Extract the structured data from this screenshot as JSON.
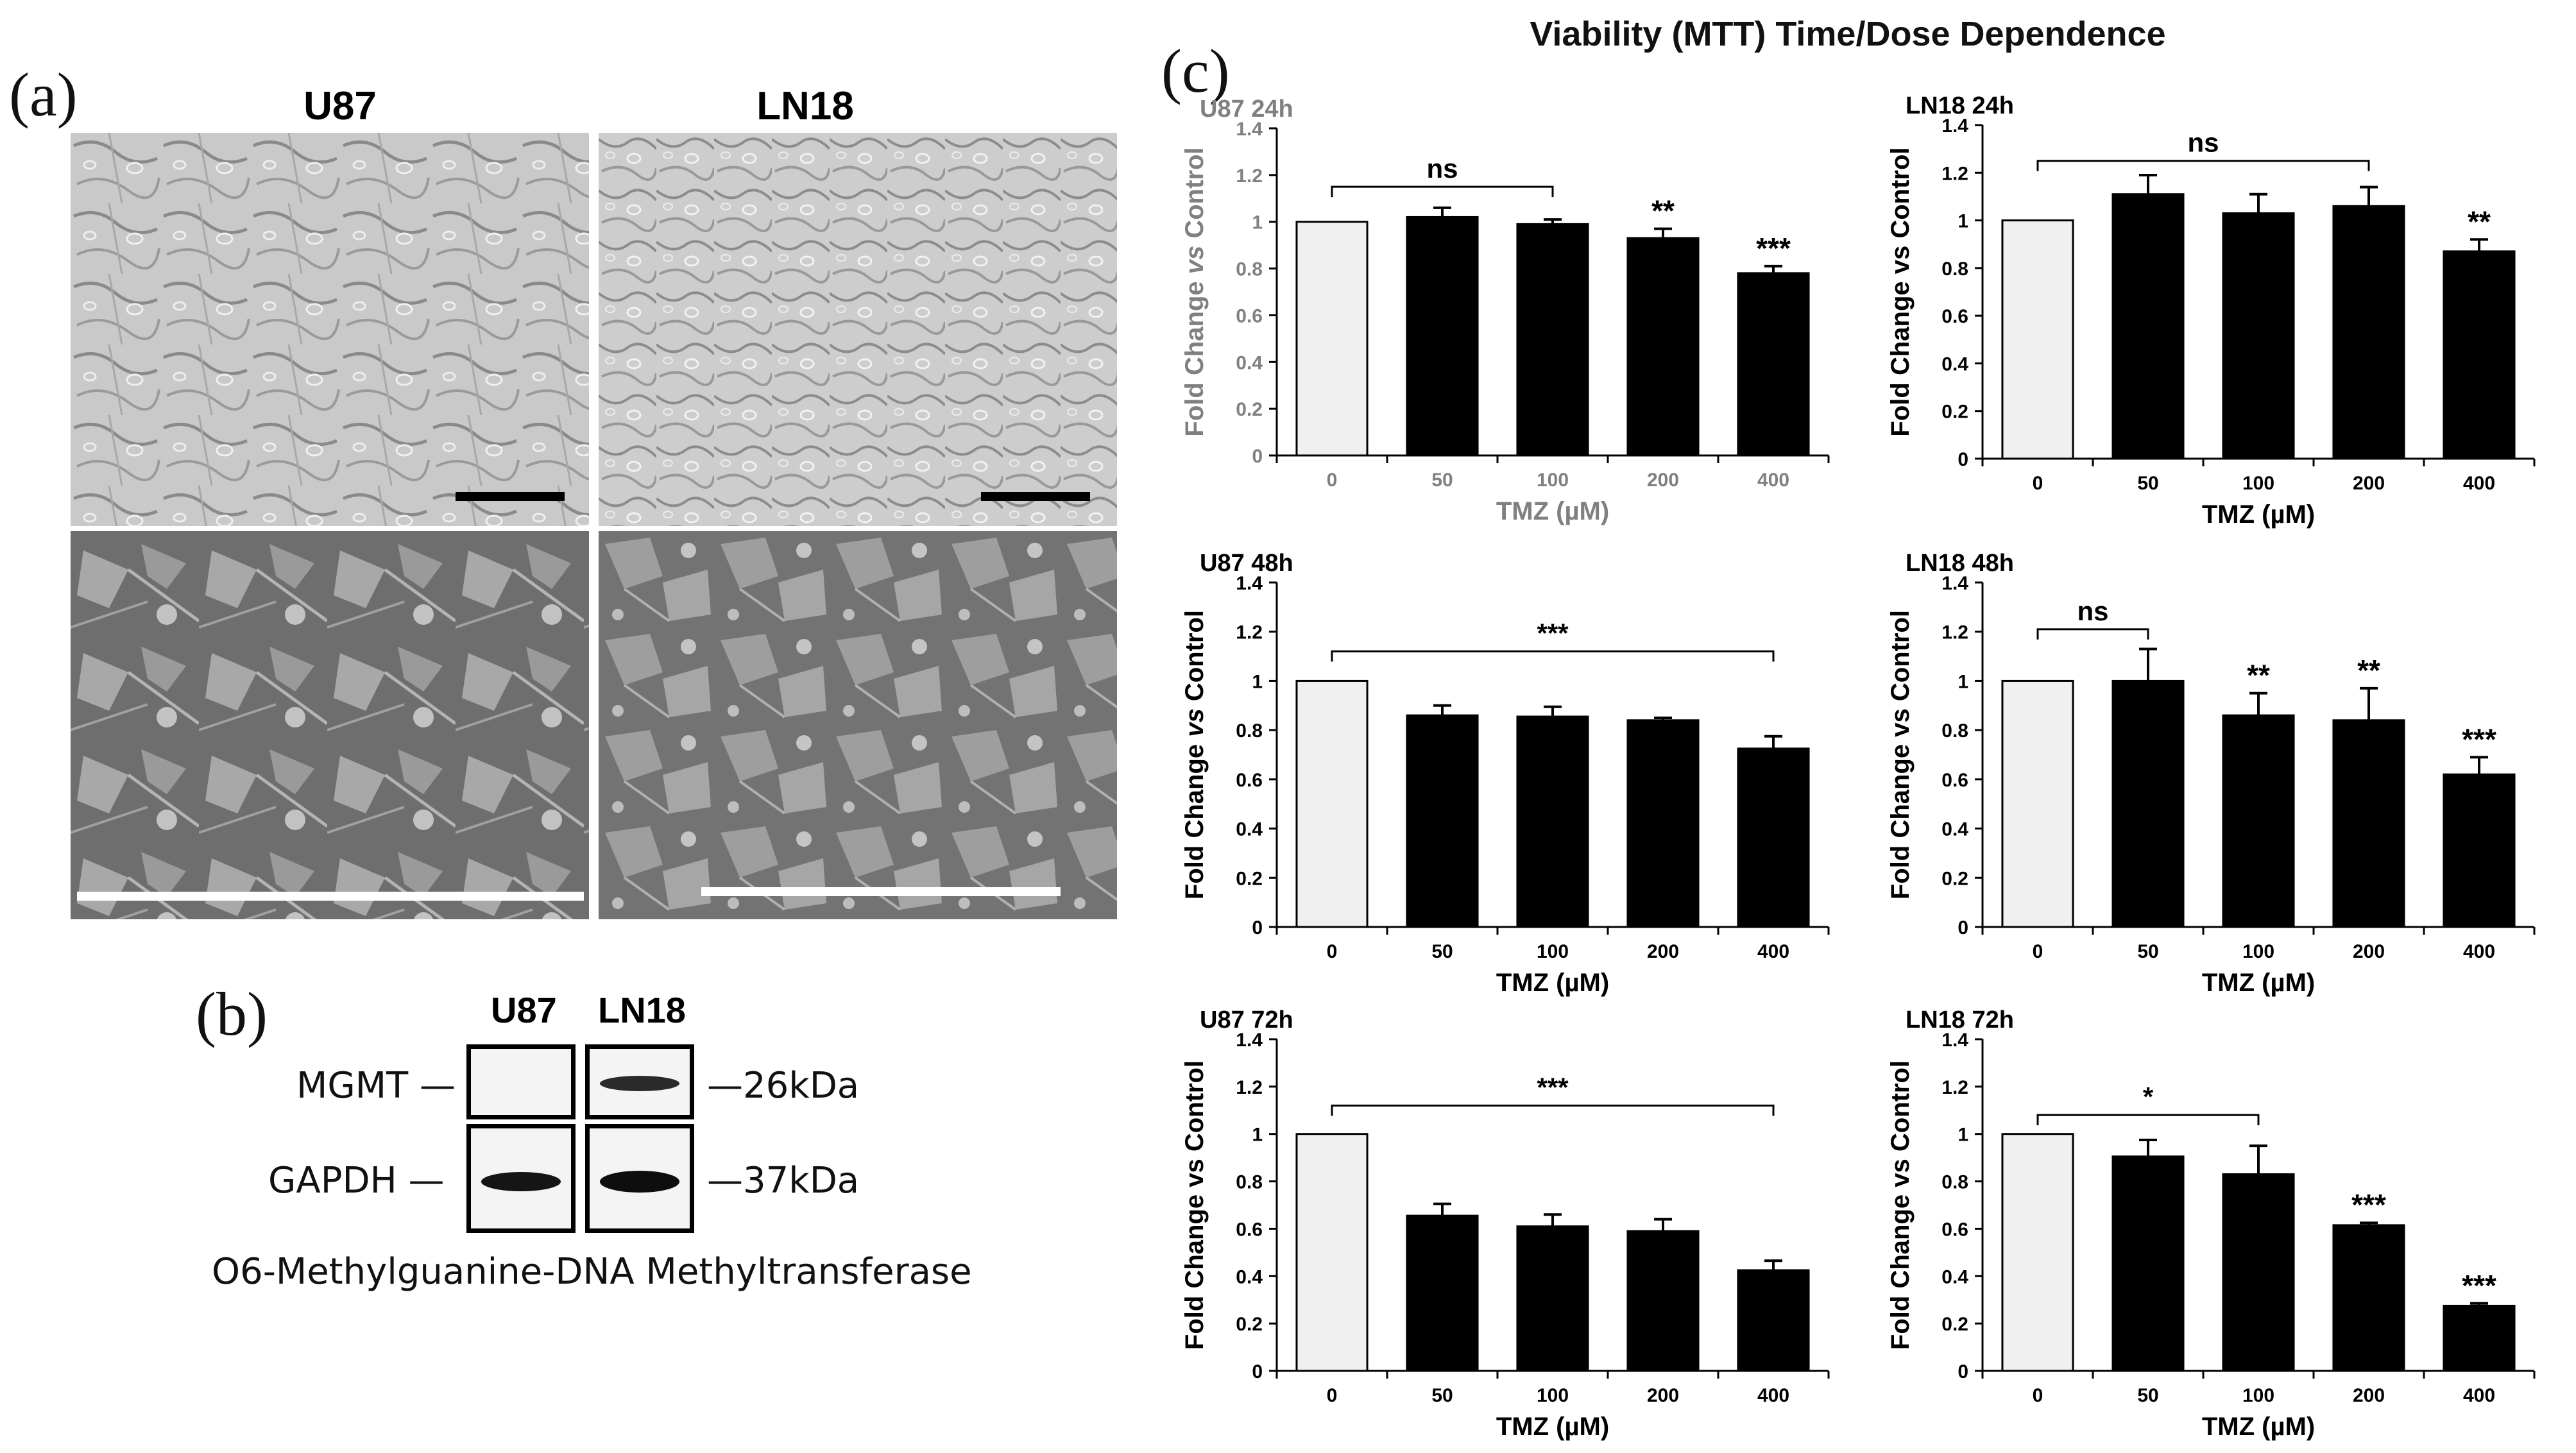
{
  "figure": {
    "panel_a": {
      "letter": "(a)",
      "col1": "U87",
      "col2": "LN18"
    },
    "panel_b": {
      "letter": "(b)",
      "col1": "U87",
      "col2": "LN18",
      "row1_label": "MGMT",
      "row2_label": "GAPDH",
      "row1_size": "26kDa",
      "row2_size": "37kDa",
      "caption": "O6-Methylguanine-DNA Methyltransferase"
    },
    "panel_c": {
      "letter": "(c)",
      "title": "Viability (MTT) Time/Dose Dependence"
    }
  },
  "chart_data": [
    {
      "type": "bar",
      "title": "U87 24h",
      "categories": [
        "0",
        "50",
        "100",
        "200",
        "400"
      ],
      "values": [
        1.0,
        1.02,
        0.99,
        0.93,
        0.78
      ],
      "errors": [
        0,
        0.04,
        0.02,
        0.04,
        0.03
      ],
      "colors": [
        "#f0f0f0",
        "#000000",
        "#000000",
        "#000000",
        "#000000"
      ],
      "xlabel": "TMZ (µM)",
      "ylabel_parts": [
        "Fold Change ",
        "vs",
        " Control"
      ],
      "yticks": [
        "0",
        "0.2",
        "0.4",
        "0.6",
        "0.8",
        "1",
        "1.2",
        "1.4"
      ],
      "ylim": [
        0,
        1.4
      ],
      "grey_labels": true,
      "brackets": [
        {
          "from": 0,
          "to": 2,
          "y": 1.15,
          "label": "ns"
        }
      ],
      "stars": [
        {
          "index": 3,
          "label": "**"
        },
        {
          "index": 4,
          "label": "***"
        }
      ]
    },
    {
      "type": "bar",
      "title": "LN18 24h",
      "categories": [
        "0",
        "50",
        "100",
        "200",
        "400"
      ],
      "values": [
        1.0,
        1.11,
        1.03,
        1.06,
        0.87
      ],
      "errors": [
        0,
        0.08,
        0.08,
        0.08,
        0.05
      ],
      "colors": [
        "#f0f0f0",
        "#000000",
        "#000000",
        "#000000",
        "#000000"
      ],
      "xlabel": "TMZ (µM)",
      "ylabel_parts": [
        "Fold Change vs Control"
      ],
      "yticks": [
        "0",
        "0.2",
        "0.4",
        "0.6",
        "0.8",
        "1",
        "1.2",
        "1.4"
      ],
      "ylim": [
        0,
        1.4
      ],
      "grey_labels": false,
      "brackets": [
        {
          "from": 0,
          "to": 3,
          "y": 1.25,
          "label": "ns"
        }
      ],
      "stars": [
        {
          "index": 4,
          "label": "**"
        }
      ]
    },
    {
      "type": "bar",
      "title": "U87 48h",
      "categories": [
        "0",
        "50",
        "100",
        "200",
        "400"
      ],
      "values": [
        1.0,
        0.86,
        0.855,
        0.84,
        0.725
      ],
      "errors": [
        0,
        0.04,
        0.04,
        0.01,
        0.05
      ],
      "colors": [
        "#f0f0f0",
        "#000000",
        "#000000",
        "#000000",
        "#000000"
      ],
      "xlabel": "TMZ (µM)",
      "ylabel_parts": [
        "Fold  Change ",
        "vs",
        " Control"
      ],
      "yticks": [
        "0",
        "0.2",
        "0.4",
        "0.6",
        "0.8",
        "1",
        "1.2",
        "1.4"
      ],
      "ylim": [
        0,
        1.4
      ],
      "grey_labels": false,
      "brackets": [
        {
          "from": 0,
          "to": 4,
          "y": 1.12,
          "label": "***"
        }
      ],
      "stars": []
    },
    {
      "type": "bar",
      "title": "LN18 48h",
      "categories": [
        "0",
        "50",
        "100",
        "200",
        "400"
      ],
      "values": [
        1.0,
        1.0,
        0.86,
        0.84,
        0.62
      ],
      "errors": [
        0,
        0.13,
        0.09,
        0.13,
        0.07
      ],
      "colors": [
        "#f0f0f0",
        "#000000",
        "#000000",
        "#000000",
        "#000000"
      ],
      "xlabel": "TMZ (µM)",
      "ylabel_parts": [
        "Fold Change vs Control"
      ],
      "yticks": [
        "0",
        "0.2",
        "0.4",
        "0.6",
        "0.8",
        "1",
        "1.2",
        "1.4"
      ],
      "ylim": [
        0,
        1.4
      ],
      "grey_labels": false,
      "brackets": [
        {
          "from": 0,
          "to": 1,
          "y": 1.21,
          "label": "ns"
        }
      ],
      "stars": [
        {
          "index": 2,
          "label": "**"
        },
        {
          "index": 3,
          "label": "**"
        },
        {
          "index": 4,
          "label": "***"
        }
      ]
    },
    {
      "type": "bar",
      "title": "U87 72h",
      "categories": [
        "0",
        "50",
        "100",
        "200",
        "400"
      ],
      "values": [
        1.0,
        0.655,
        0.61,
        0.59,
        0.425
      ],
      "errors": [
        0,
        0.05,
        0.05,
        0.05,
        0.04
      ],
      "colors": [
        "#f0f0f0",
        "#000000",
        "#000000",
        "#000000",
        "#000000"
      ],
      "xlabel": "TMZ (µM)",
      "ylabel_parts": [
        "Fold Change vs Control"
      ],
      "yticks": [
        "0",
        "0.2",
        "0.4",
        "0.6",
        "0.8",
        "1",
        "1.2",
        "1.4"
      ],
      "ylim": [
        0,
        1.4
      ],
      "grey_labels": false,
      "brackets": [
        {
          "from": 0,
          "to": 4,
          "y": 1.12,
          "label": "***"
        }
      ],
      "stars": []
    },
    {
      "type": "bar",
      "title": "LN18 72h",
      "categories": [
        "0",
        "50",
        "100",
        "200",
        "400"
      ],
      "values": [
        1.0,
        0.905,
        0.83,
        0.615,
        0.275
      ],
      "errors": [
        0,
        0.07,
        0.12,
        0.01,
        0.01
      ],
      "colors": [
        "#f0f0f0",
        "#000000",
        "#000000",
        "#000000",
        "#000000"
      ],
      "xlabel": "TMZ (µM)",
      "ylabel_parts": [
        "Fold Change vs Control"
      ],
      "yticks": [
        "0",
        "0.2",
        "0.4",
        "0.6",
        "0.8",
        "1",
        "1.2",
        "1.4"
      ],
      "ylim": [
        0,
        1.4
      ],
      "grey_labels": false,
      "brackets": [
        {
          "from": 0,
          "to": 2,
          "y": 1.08,
          "label": "*"
        }
      ],
      "stars": [
        {
          "index": 3,
          "label": "***"
        },
        {
          "index": 4,
          "label": "***"
        }
      ]
    }
  ]
}
